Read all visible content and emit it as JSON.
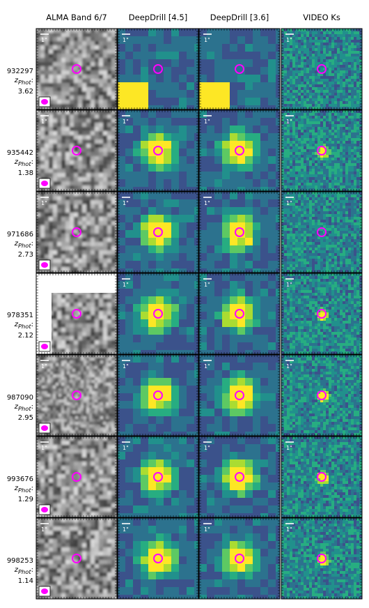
{
  "columns": [
    {
      "id": "alma",
      "label": "ALMA Band 6/7"
    },
    {
      "id": "ch2",
      "label": "DeepDrill [4.5]"
    },
    {
      "id": "ch1",
      "label": "DeepDrill [3.6]"
    },
    {
      "id": "ks",
      "label": "VIDEO Ks"
    }
  ],
  "scale_bar_label": "1\"",
  "zphot_prefix": "z",
  "zphot_sub": "Phot",
  "rows": [
    {
      "id": "932297",
      "z": ": 3.62",
      "near_bright": true
    },
    {
      "id": "935442",
      "z": ": 1.38",
      "near_bright": false
    },
    {
      "id": "971686",
      "z": ": 2.73",
      "near_bright": false
    },
    {
      "id": "978351",
      "z": ": 2.12",
      "near_bright": false
    },
    {
      "id": "987090",
      "z": ": 2.95",
      "near_bright": false
    },
    {
      "id": "993676",
      "z": ": 1.29",
      "near_bright": false
    },
    {
      "id": "998253",
      "z": ": 1.14",
      "near_bright": false
    }
  ],
  "colors": {
    "marker": "#ff00ff",
    "viridis_low": "#2f2f70",
    "viridis_mid": "#21908c",
    "viridis_high": "#fde725"
  }
}
